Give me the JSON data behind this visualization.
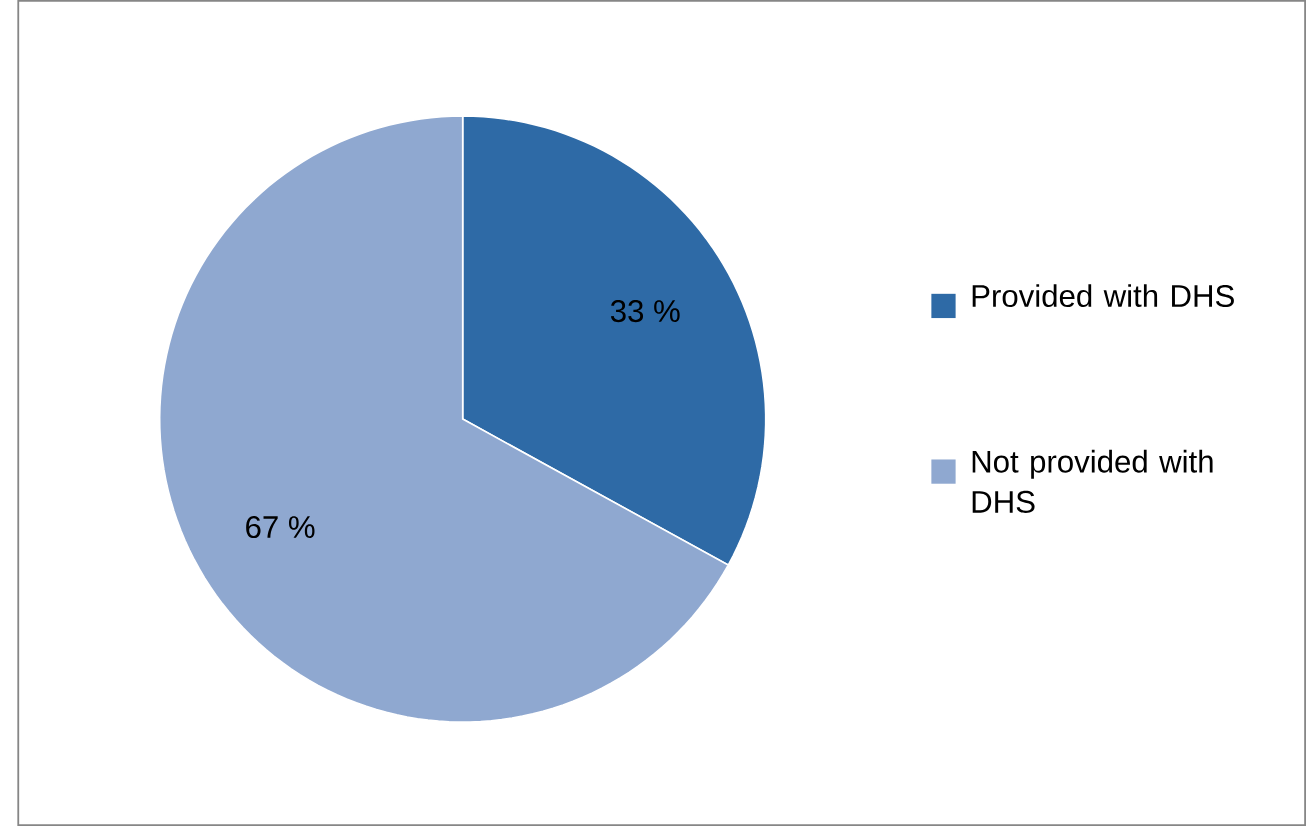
{
  "chart_data": {
    "type": "pie",
    "categories": [
      "Provided with DHS",
      "Not provided with DHS"
    ],
    "values": [
      33,
      67
    ],
    "colors": [
      "#2e6aa6",
      "#8fa8d0"
    ],
    "value_labels": [
      "33 %",
      "67 %"
    ],
    "legend": "right"
  }
}
